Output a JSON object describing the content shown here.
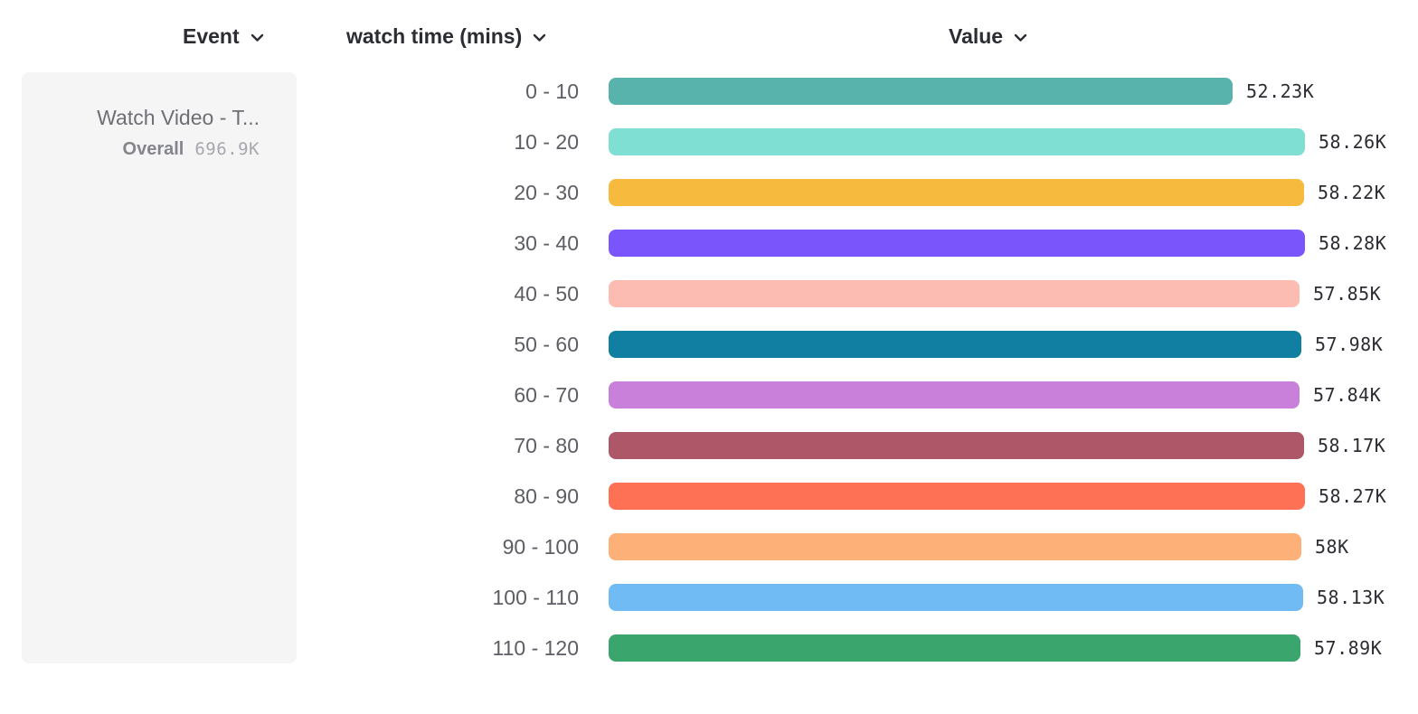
{
  "columns": {
    "event": {
      "label": "Event"
    },
    "breakdown": {
      "label": "watch time (mins)"
    },
    "value": {
      "label": "Value"
    }
  },
  "legend": {
    "event_name": "Watch Video - T...",
    "overall_label": "Overall",
    "overall_value": "696.9K"
  },
  "chart_data": {
    "type": "bar",
    "orientation": "horizontal",
    "title": "",
    "xlabel": "",
    "ylabel": "watch time (mins)",
    "grid": false,
    "legend_position": "left-card",
    "categories": [
      "0 - 10",
      "10 - 20",
      "20 - 30",
      "30 - 40",
      "40 - 50",
      "50 - 60",
      "60 - 70",
      "70 - 80",
      "80 - 90",
      "90 - 100",
      "100 - 110",
      "110 - 120"
    ],
    "values": [
      52230,
      58260,
      58220,
      58280,
      57850,
      57980,
      57840,
      58170,
      58270,
      58000,
      58130,
      57890
    ],
    "value_labels": [
      "52.23K",
      "58.26K",
      "58.22K",
      "58.28K",
      "57.85K",
      "57.98K",
      "57.84K",
      "58.17K",
      "58.27K",
      "58K",
      "58.13K",
      "57.89K"
    ],
    "colors": [
      "#58b3ac",
      "#7fdfd3",
      "#f6ba3f",
      "#7a55fb",
      "#fcbcb1",
      "#117fa1",
      "#c980da",
      "#ad5769",
      "#fe7154",
      "#fdb077",
      "#71bbf4",
      "#3aa56d"
    ],
    "xlim": [
      0,
      58280
    ]
  },
  "icons": {
    "chevron_down": "chevron-down-icon",
    "chevron_color": "#2b2d33"
  }
}
